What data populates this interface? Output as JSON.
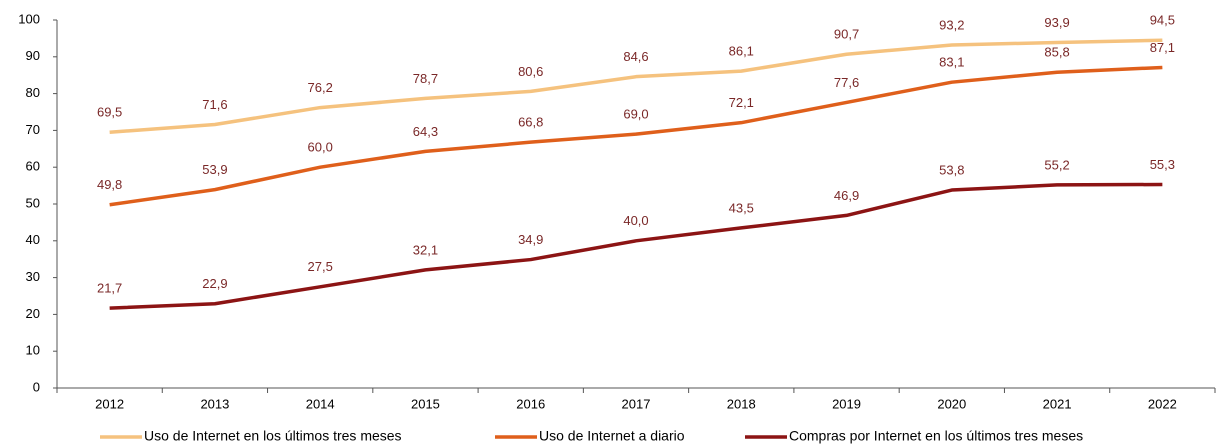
{
  "chart_data": {
    "type": "line",
    "categories": [
      "2012",
      "2013",
      "2014",
      "2015",
      "2016",
      "2017",
      "2018",
      "2019",
      "2020",
      "2021",
      "2022"
    ],
    "series": [
      {
        "name": "Uso de Internet en los últimos tres meses",
        "color": "#f5c27e",
        "values": [
          69.5,
          71.6,
          76.2,
          78.7,
          80.6,
          84.6,
          86.1,
          90.7,
          93.2,
          93.9,
          94.5
        ],
        "value_labels": [
          "69,5",
          "71,6",
          "76,2",
          "78,7",
          "80,6",
          "84,6",
          "86,1",
          "90,7",
          "93,2",
          "93,9",
          "94,5"
        ]
      },
      {
        "name": "Uso de Internet a diario",
        "color": "#df5f1b",
        "values": [
          49.8,
          53.9,
          60.0,
          64.3,
          66.8,
          69.0,
          72.1,
          77.6,
          83.1,
          85.8,
          87.1
        ],
        "value_labels": [
          "49,8",
          "53,9",
          "60,0",
          "64,3",
          "66,8",
          "69,0",
          "72,1",
          "77,6",
          "83,1",
          "85,8",
          "87,1"
        ]
      },
      {
        "name": "Compras por Internet en los últimos tres meses",
        "color": "#8c1414",
        "values": [
          21.7,
          22.9,
          27.5,
          32.1,
          34.9,
          40.0,
          43.5,
          46.9,
          53.8,
          55.2,
          55.3
        ],
        "value_labels": [
          "21,7",
          "22,9",
          "27,5",
          "32,1",
          "34,9",
          "40,0",
          "43,5",
          "46,9",
          "53,8",
          "55,2",
          "55,3"
        ]
      }
    ],
    "ylim": [
      0,
      100
    ],
    "yticks": [
      0,
      10,
      20,
      30,
      40,
      50,
      60,
      70,
      80,
      90,
      100
    ],
    "grid": false,
    "legend": "bottom"
  }
}
